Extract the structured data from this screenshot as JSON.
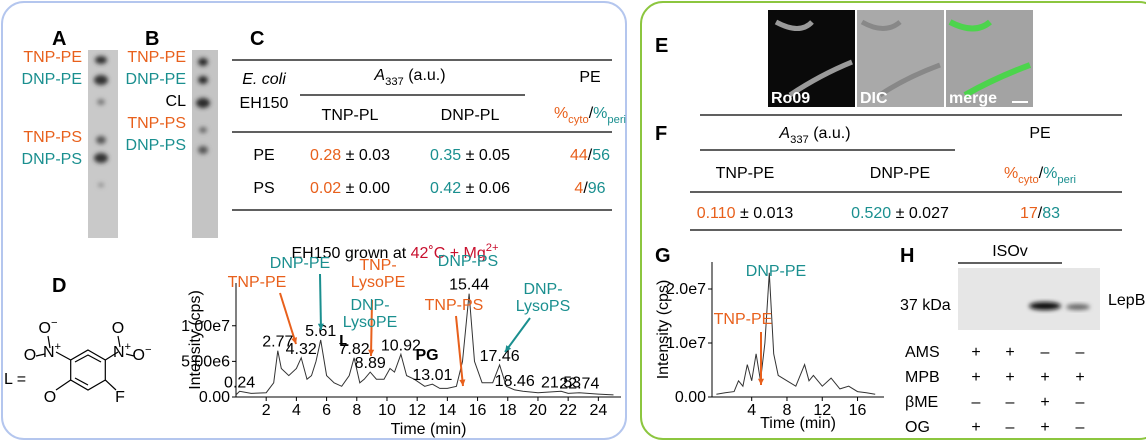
{
  "tnp_color": "#e8601c",
  "dnp_color": "#1a8f8f",
  "panel_a": {
    "letter": "A",
    "labels": [
      {
        "text": "TNP-PE",
        "color": "#e8601c"
      },
      {
        "text": "DNP-PE",
        "color": "#1a8f8f"
      },
      {
        "text": "TNP-PS",
        "color": "#e8601c"
      },
      {
        "text": "DNP-PS",
        "color": "#1a8f8f"
      }
    ]
  },
  "panel_b": {
    "letter": "B",
    "labels": [
      {
        "text": "TNP-PE",
        "color": "#e8601c"
      },
      {
        "text": "DNP-PE",
        "color": "#1a8f8f"
      },
      {
        "text": "CL",
        "color": "#000000"
      },
      {
        "text": "TNP-PS",
        "color": "#e8601c"
      },
      {
        "text": "DNP-PS",
        "color": "#1a8f8f"
      }
    ]
  },
  "panel_c": {
    "letter": "C",
    "strain": [
      "E. coli",
      "EH150"
    ],
    "absorbance": [
      {
        "text": "A",
        "italic": true
      },
      {
        "text": "337",
        "sub": true
      },
      {
        "text": " (a.u.)"
      }
    ],
    "pe": "PE",
    "columns": [
      "TNP-PL",
      "DNP-PL"
    ],
    "ratio": [
      {
        "text": "%",
        "color": "#e8601c"
      },
      {
        "text": "cyto",
        "sub": true,
        "color": "#e8601c"
      },
      {
        "text": "/"
      },
      {
        "text": "%",
        "color": "#1a8f8f"
      },
      {
        "text": "peri",
        "sub": true,
        "color": "#1a8f8f"
      }
    ],
    "rows": [
      {
        "label": "PE",
        "cells": [
          [
            {
              "text": "0.28",
              "color": "#e8601c"
            },
            {
              "text": " ± 0.03"
            }
          ],
          [
            {
              "text": "0.35",
              "color": "#1a8f8f"
            },
            {
              "text": " ± 0.05"
            }
          ],
          [
            {
              "text": "44",
              "color": "#e8601c"
            },
            {
              "text": "/"
            },
            {
              "text": "56",
              "color": "#1a8f8f"
            }
          ]
        ]
      },
      {
        "label": "PS",
        "cells": [
          [
            {
              "text": "0.02",
              "color": "#e8601c"
            },
            {
              "text": " ± 0.00"
            }
          ],
          [
            {
              "text": "0.42",
              "color": "#1a8f8f"
            },
            {
              "text": " ± 0.06"
            }
          ],
          [
            {
              "text": "4",
              "color": "#e8601c"
            },
            {
              "text": "/"
            },
            {
              "text": "96",
              "color": "#1a8f8f"
            }
          ]
        ]
      }
    ]
  },
  "panel_d": {
    "letter": "D",
    "l_eq": "L =",
    "atoms": [
      [
        {
          "text": "O"
        },
        {
          "text": "−",
          "sup": true
        }
      ],
      [
        {
          "text": "N"
        },
        {
          "text": "+",
          "sup": true
        }
      ],
      [
        {
          "text": "O"
        }
      ],
      [
        {
          "text": "O"
        }
      ],
      [
        {
          "text": "N"
        },
        {
          "text": "+",
          "sup": true
        }
      ],
      [
        {
          "text": "O"
        },
        {
          "text": "−",
          "sup": true
        }
      ],
      [
        {
          "text": "O"
        }
      ],
      [
        {
          "text": "F"
        }
      ]
    ],
    "title": [
      {
        "text": "EH150 grown at "
      },
      {
        "text": "42˚C + Mg",
        "color": "#c8102e"
      },
      {
        "text": "2+",
        "sup": true,
        "color": "#c8102e"
      }
    ]
  },
  "chart_data": [
    {
      "type": "line",
      "y_label": "Intensity (cps)",
      "x_label": "Time (min)",
      "color": "#333333",
      "x": [
        0,
        0.24,
        1,
        2,
        2.5,
        2.77,
        3,
        3.5,
        4,
        4.32,
        4.7,
        5,
        5.3,
        5.61,
        6,
        6.5,
        7,
        7.5,
        7.82,
        8.2,
        8.5,
        8.89,
        9.3,
        9.8,
        10.2,
        10.5,
        10.92,
        11.3,
        11.8,
        12.5,
        13.01,
        13.5,
        14,
        14.6,
        15,
        15.44,
        15.8,
        16.3,
        17,
        17.46,
        17.9,
        18.46,
        19,
        20,
        21.53,
        22,
        22.74,
        24,
        25
      ],
      "values": [
        300000,
        800000,
        500000,
        600000,
        2000000,
        6500000,
        4000000,
        3000000,
        4000000,
        5500000,
        2500000,
        3000000,
        5000000,
        8000000,
        3000000,
        2000000,
        1500000,
        3000000,
        5500000,
        2000000,
        2500000,
        3500000,
        2500000,
        2500000,
        4000000,
        3500000,
        6000000,
        3000000,
        2500000,
        1500000,
        1800000,
        1200000,
        1200000,
        1500000,
        5000000,
        14500000,
        5000000,
        2000000,
        2000000,
        4500000,
        1500000,
        1000000,
        800000,
        600000,
        800000,
        500000,
        600000,
        400000,
        300000
      ],
      "xlim": [
        0,
        25.5
      ],
      "ylim": [
        0,
        16000000
      ],
      "xticks": [
        2,
        4,
        6,
        8,
        10,
        12,
        14,
        16,
        18,
        20,
        22,
        24
      ],
      "yticks": [
        {
          "value": 0,
          "label": "0.00"
        },
        {
          "value": 5000000,
          "label": "5.00e6"
        },
        {
          "value": 10000000,
          "label": "1.00e7"
        }
      ],
      "peaks": [
        0.24,
        2.77,
        4.32,
        5.61,
        7.82,
        8.89,
        10.92,
        13.01,
        15.44,
        17.46,
        18.46,
        21.53,
        22.74
      ],
      "annotations": [
        {
          "lines": [
            "TNP-PE"
          ],
          "color": "#e8601c"
        },
        {
          "lines": [
            "DNP-PE"
          ],
          "color": "#1a8f8f"
        },
        {
          "lines": [
            "TNP-",
            "LysoPE"
          ],
          "color": "#e8601c"
        },
        {
          "lines": [
            "DNP-",
            "LysoPE"
          ],
          "color": "#1a8f8f"
        },
        {
          "lines": [
            "TNP-PS"
          ],
          "color": "#e8601c"
        },
        {
          "lines": [
            "DNP-PS"
          ],
          "color": "#1a8f8f"
        },
        {
          "lines": [
            "DNP-",
            "LysoPS"
          ],
          "color": "#1a8f8f"
        }
      ],
      "markers": [
        "L",
        "PG"
      ]
    },
    {
      "type": "line",
      "y_label": "Intensity (cps)",
      "x_label": "Time (min)",
      "color": "#333333",
      "x": [
        0,
        1,
        2,
        2.5,
        3,
        3.5,
        4,
        4.5,
        5,
        5.5,
        6,
        6.5,
        7,
        8,
        9,
        10,
        10.5,
        11,
        12,
        13,
        14,
        15,
        16,
        17,
        18
      ],
      "values": [
        500000,
        800000,
        1000000,
        3000000,
        2000000,
        6000000,
        3000000,
        8000000,
        3000000,
        10000000,
        23000000,
        8000000,
        4000000,
        3000000,
        2000000,
        6000000,
        3000000,
        4000000,
        2000000,
        3500000,
        1500000,
        2000000,
        1000000,
        800000,
        500000
      ],
      "xlim": [
        -0.5,
        19
      ],
      "ylim": [
        0,
        25000000
      ],
      "xticks": [
        4,
        8,
        12,
        16
      ],
      "yticks": [
        {
          "value": 0,
          "label": "0.00"
        },
        {
          "value": 10000000,
          "label": "1.0e7"
        },
        {
          "value": 20000000,
          "label": "2.0e7"
        }
      ],
      "annotations": [
        {
          "lines": [
            "DNP-PE"
          ],
          "color": "#1a8f8f"
        },
        {
          "lines": [
            "TNP-PE"
          ],
          "color": "#e8601c"
        }
      ]
    }
  ],
  "panel_e": {
    "letter": "E",
    "captions": [
      "Ro09",
      "DIC",
      "merge"
    ]
  },
  "panel_f": {
    "letter": "F",
    "absorbance": [
      {
        "text": "A",
        "italic": true
      },
      {
        "text": "337",
        "sub": true
      },
      {
        "text": " (a.u.)"
      }
    ],
    "pe": "PE",
    "columns": [
      "TNP-PE",
      "DNP-PE"
    ],
    "ratio": [
      {
        "text": "%",
        "color": "#e8601c"
      },
      {
        "text": "cyto",
        "sub": true,
        "color": "#e8601c"
      },
      {
        "text": "/"
      },
      {
        "text": "%",
        "color": "#1a8f8f"
      },
      {
        "text": "peri",
        "sub": true,
        "color": "#1a8f8f"
      }
    ],
    "cells": [
      [
        {
          "text": "0.110",
          "color": "#e8601c"
        },
        {
          "text": " ± 0.013"
        }
      ],
      [
        {
          "text": "0.520",
          "color": "#1a8f8f"
        },
        {
          "text": " ± 0.027"
        }
      ],
      [
        {
          "text": "17",
          "color": "#e8601c"
        },
        {
          "text": "/"
        },
        {
          "text": "83",
          "color": "#1a8f8f"
        }
      ]
    ]
  },
  "panel_g": {
    "letter": "G"
  },
  "panel_h": {
    "letter": "H",
    "group": "ISOv",
    "marker": "37 kDa",
    "protein": "LepB",
    "rows": [
      {
        "label": "AMS",
        "signs": [
          "+",
          "+",
          "–",
          "–"
        ]
      },
      {
        "label": "MPB",
        "signs": [
          "+",
          "+",
          "+",
          "+"
        ]
      },
      {
        "label": "βME",
        "signs": [
          "–",
          "–",
          "+",
          "–"
        ]
      },
      {
        "label": "OG",
        "signs": [
          "+",
          "–",
          "+",
          "–"
        ]
      }
    ]
  }
}
